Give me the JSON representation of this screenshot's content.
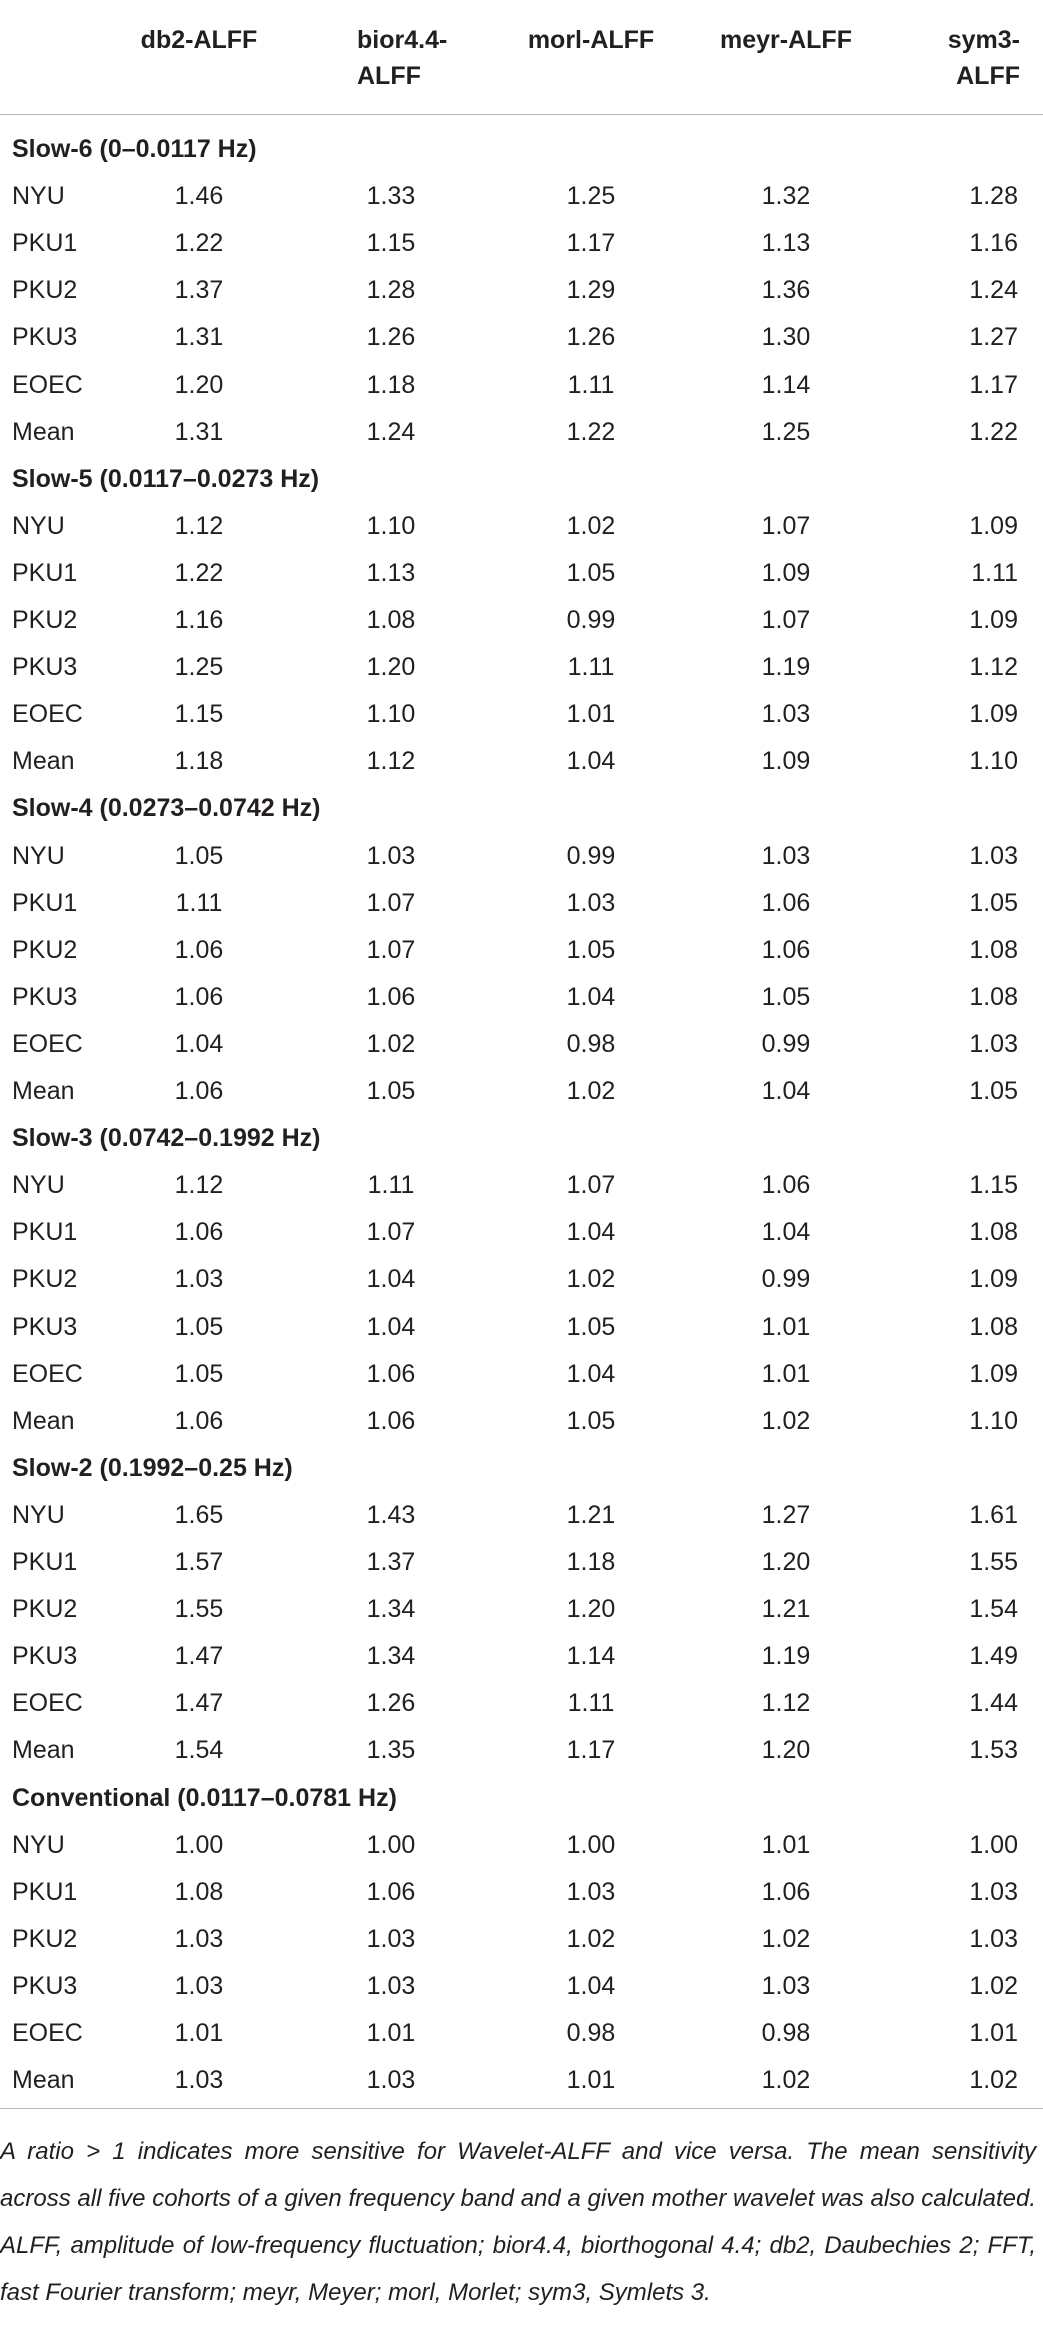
{
  "table": {
    "columns": [
      "db2-ALFF",
      "bior4.4-ALFF",
      "morl-ALFF",
      "meyr-ALFF",
      "sym3-ALFF"
    ],
    "sections": [
      {
        "title": "Slow-6 (0–0.0117 Hz)",
        "rows": [
          [
            "NYU",
            "1.46",
            "1.33",
            "1.25",
            "1.32",
            "1.28"
          ],
          [
            "PKU1",
            "1.22",
            "1.15",
            "1.17",
            "1.13",
            "1.16"
          ],
          [
            "PKU2",
            "1.37",
            "1.28",
            "1.29",
            "1.36",
            "1.24"
          ],
          [
            "PKU3",
            "1.31",
            "1.26",
            "1.26",
            "1.30",
            "1.27"
          ],
          [
            "EOEC",
            "1.20",
            "1.18",
            "1.11",
            "1.14",
            "1.17"
          ],
          [
            "Mean",
            "1.31",
            "1.24",
            "1.22",
            "1.25",
            "1.22"
          ]
        ]
      },
      {
        "title": "Slow-5 (0.0117–0.0273 Hz)",
        "rows": [
          [
            "NYU",
            "1.12",
            "1.10",
            "1.02",
            "1.07",
            "1.09"
          ],
          [
            "PKU1",
            "1.22",
            "1.13",
            "1.05",
            "1.09",
            "1.11"
          ],
          [
            "PKU2",
            "1.16",
            "1.08",
            "0.99",
            "1.07",
            "1.09"
          ],
          [
            "PKU3",
            "1.25",
            "1.20",
            "1.11",
            "1.19",
            "1.12"
          ],
          [
            "EOEC",
            "1.15",
            "1.10",
            "1.01",
            "1.03",
            "1.09"
          ],
          [
            "Mean",
            "1.18",
            "1.12",
            "1.04",
            "1.09",
            "1.10"
          ]
        ]
      },
      {
        "title": "Slow-4 (0.0273–0.0742 Hz)",
        "rows": [
          [
            "NYU",
            "1.05",
            "1.03",
            "0.99",
            "1.03",
            "1.03"
          ],
          [
            "PKU1",
            "1.11",
            "1.07",
            "1.03",
            "1.06",
            "1.05"
          ],
          [
            "PKU2",
            "1.06",
            "1.07",
            "1.05",
            "1.06",
            "1.08"
          ],
          [
            "PKU3",
            "1.06",
            "1.06",
            "1.04",
            "1.05",
            "1.08"
          ],
          [
            "EOEC",
            "1.04",
            "1.02",
            "0.98",
            "0.99",
            "1.03"
          ],
          [
            "Mean",
            "1.06",
            "1.05",
            "1.02",
            "1.04",
            "1.05"
          ]
        ]
      },
      {
        "title": "Slow-3 (0.0742–0.1992 Hz)",
        "rows": [
          [
            "NYU",
            "1.12",
            "1.11",
            "1.07",
            "1.06",
            "1.15"
          ],
          [
            "PKU1",
            "1.06",
            "1.07",
            "1.04",
            "1.04",
            "1.08"
          ],
          [
            "PKU2",
            "1.03",
            "1.04",
            "1.02",
            "0.99",
            "1.09"
          ],
          [
            "PKU3",
            "1.05",
            "1.04",
            "1.05",
            "1.01",
            "1.08"
          ],
          [
            "EOEC",
            "1.05",
            "1.06",
            "1.04",
            "1.01",
            "1.09"
          ],
          [
            "Mean",
            "1.06",
            "1.06",
            "1.05",
            "1.02",
            "1.10"
          ]
        ]
      },
      {
        "title": "Slow-2 (0.1992–0.25 Hz)",
        "rows": [
          [
            "NYU",
            "1.65",
            "1.43",
            "1.21",
            "1.27",
            "1.61"
          ],
          [
            "PKU1",
            "1.57",
            "1.37",
            "1.18",
            "1.20",
            "1.55"
          ],
          [
            "PKU2",
            "1.55",
            "1.34",
            "1.20",
            "1.21",
            "1.54"
          ],
          [
            "PKU3",
            "1.47",
            "1.34",
            "1.14",
            "1.19",
            "1.49"
          ],
          [
            "EOEC",
            "1.47",
            "1.26",
            "1.11",
            "1.12",
            "1.44"
          ],
          [
            "Mean",
            "1.54",
            "1.35",
            "1.17",
            "1.20",
            "1.53"
          ]
        ]
      },
      {
        "title": "Conventional (0.0117–0.0781 Hz)",
        "rows": [
          [
            "NYU",
            "1.00",
            "1.00",
            "1.00",
            "1.01",
            "1.00"
          ],
          [
            "PKU1",
            "1.08",
            "1.06",
            "1.03",
            "1.06",
            "1.03"
          ],
          [
            "PKU2",
            "1.03",
            "1.03",
            "1.02",
            "1.02",
            "1.03"
          ],
          [
            "PKU3",
            "1.03",
            "1.03",
            "1.04",
            "1.03",
            "1.02"
          ],
          [
            "EOEC",
            "1.01",
            "1.01",
            "0.98",
            "0.98",
            "1.01"
          ],
          [
            "Mean",
            "1.03",
            "1.03",
            "1.01",
            "1.02",
            "1.02"
          ]
        ]
      }
    ]
  },
  "footnote": "A ratio > 1 indicates more sensitive for Wavelet-ALFF and vice versa. The mean sensitivity across all five cohorts of a given frequency band and a given mother wavelet was also calculated. ALFF, amplitude of low-frequency fluctuation; bior4.4, biorthogonal 4.4; db2, Daubechies 2; FFT, fast Fourier transform; meyr, Meyer; morl, Morlet; sym3, Symlets 3."
}
